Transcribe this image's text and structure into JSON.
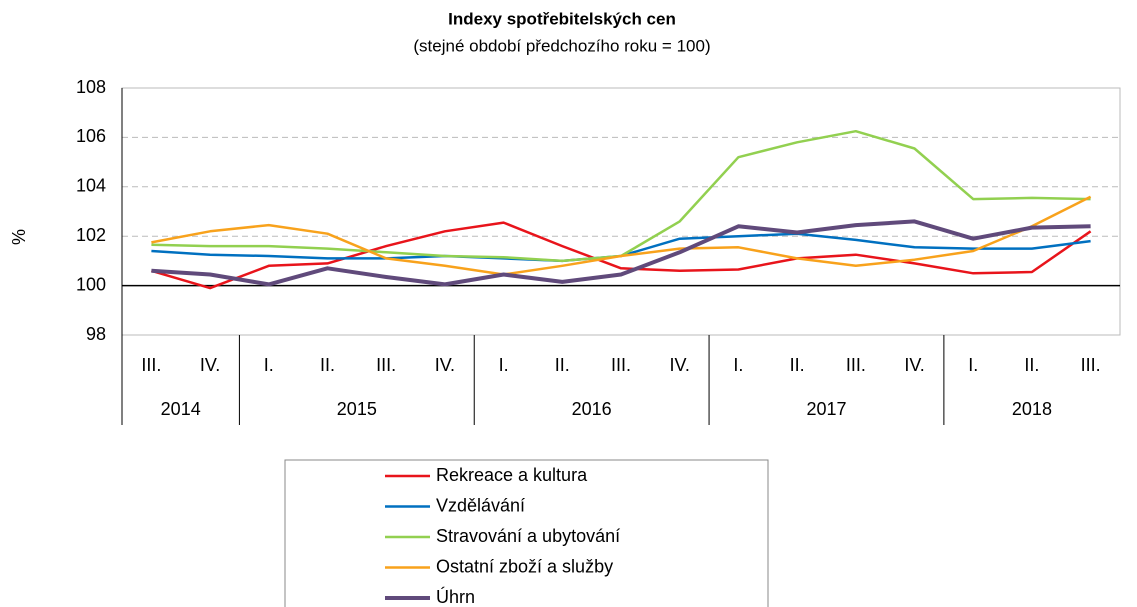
{
  "chart_data": {
    "type": "line",
    "title": "Indexy spotřebitelských  cen",
    "subtitle": "(stejné období  předchozího  roku = 100)",
    "y_label": "%",
    "categories": [
      "III.",
      "IV.",
      "I.",
      "II.",
      "III.",
      "IV.",
      "I.",
      "II.",
      "III.",
      "IV.",
      "I.",
      "II.",
      "III.",
      "IV.",
      "I.",
      "II.",
      "III."
    ],
    "category_groups": [
      "2014",
      "2014",
      "2015",
      "2015",
      "2015",
      "2015",
      "2016",
      "2016",
      "2016",
      "2016",
      "2017",
      "2017",
      "2017",
      "2017",
      "2018",
      "2018",
      "2018"
    ],
    "series": [
      {
        "name": "Rekreace a kultura",
        "color": "#e8141b",
        "values": [
          100.6,
          99.9,
          100.8,
          100.9,
          101.6,
          102.2,
          102.55,
          101.6,
          100.7,
          100.6,
          100.65,
          101.1,
          101.25,
          100.9,
          100.5,
          100.55,
          102.2
        ]
      },
      {
        "name": "Vzdělávání",
        "color": "#0070c0",
        "values": [
          101.4,
          101.25,
          101.2,
          101.1,
          101.1,
          101.2,
          101.1,
          101.0,
          101.2,
          101.9,
          102.0,
          102.1,
          101.85,
          101.55,
          101.5,
          101.5,
          101.8
        ]
      },
      {
        "name": "Stravování a ubytování",
        "color": "#92d050",
        "values": [
          101.65,
          101.6,
          101.6,
          101.5,
          101.35,
          101.2,
          101.15,
          101.0,
          101.2,
          102.6,
          105.2,
          105.8,
          106.25,
          105.55,
          103.5,
          103.55,
          103.5
        ]
      },
      {
        "name": "Ostatní zboží a služby",
        "color": "#f8a21c",
        "values": [
          101.75,
          102.2,
          102.45,
          102.1,
          101.1,
          100.8,
          100.45,
          100.8,
          101.2,
          101.5,
          101.55,
          101.1,
          100.8,
          101.05,
          101.4,
          102.4,
          103.6
        ]
      },
      {
        "name": "Úhrn",
        "color": "#604a7b",
        "values": [
          100.6,
          100.45,
          100.05,
          100.7,
          100.35,
          100.05,
          100.45,
          100.15,
          100.45,
          101.35,
          102.4,
          102.15,
          102.45,
          102.6,
          101.9,
          102.35,
          102.4
        ]
      }
    ],
    "ylim": [
      98,
      108
    ],
    "yticks": [
      98,
      100,
      102,
      104,
      106,
      108
    ],
    "grid": true,
    "reference_line": 100
  }
}
